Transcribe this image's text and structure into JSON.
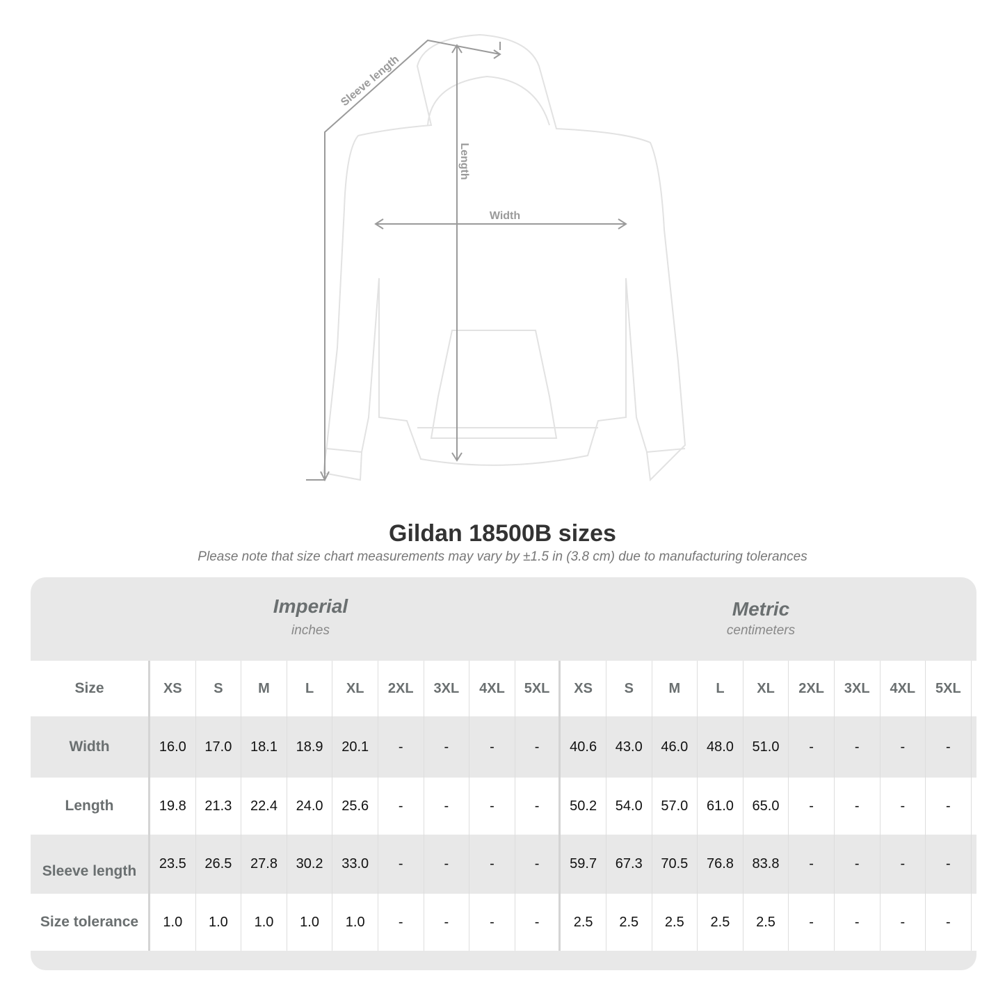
{
  "diagram": {
    "labels": {
      "sleeve": "Sleeve length",
      "length": "Length",
      "width": "Width"
    },
    "colors": {
      "garment": "#ffffff",
      "outline": "#e2e2e2",
      "measure": "#9a9a9a"
    }
  },
  "title": "Gildan 18500B sizes",
  "subtitle": "Please note that size chart measurements may vary by ±1.5 in (3.8 cm) due to manufacturing tolerances",
  "table": {
    "imperial": {
      "name": "Imperial",
      "unit": "inches"
    },
    "metric": {
      "name": "Metric",
      "unit": "centimeters"
    },
    "size_label": "Size",
    "sizes": [
      "XS",
      "S",
      "M",
      "L",
      "XL",
      "2XL",
      "3XL",
      "4XL",
      "5XL"
    ],
    "rows": [
      {
        "label": "Width",
        "imperial": [
          "16.0",
          "17.0",
          "18.1",
          "18.9",
          "20.1",
          "-",
          "-",
          "-",
          "-"
        ],
        "metric": [
          "40.6",
          "43.0",
          "46.0",
          "48.0",
          "51.0",
          "-",
          "-",
          "-",
          "-"
        ]
      },
      {
        "label": "Length",
        "imperial": [
          "19.8",
          "21.3",
          "22.4",
          "24.0",
          "25.6",
          "-",
          "-",
          "-",
          "-"
        ],
        "metric": [
          "50.2",
          "54.0",
          "57.0",
          "61.0",
          "65.0",
          "-",
          "-",
          "-",
          "-"
        ]
      },
      {
        "label": "Sleeve length",
        "imperial": [
          "23.5",
          "26.5",
          "27.8",
          "30.2",
          "33.0",
          "-",
          "-",
          "-",
          "-"
        ],
        "metric": [
          "59.7",
          "67.3",
          "70.5",
          "76.8",
          "83.8",
          "-",
          "-",
          "-",
          "-"
        ]
      },
      {
        "label": "Size tolerance",
        "imperial": [
          "1.0",
          "1.0",
          "1.0",
          "1.0",
          "1.0",
          "-",
          "-",
          "-",
          "-"
        ],
        "metric": [
          "2.5",
          "2.5",
          "2.5",
          "2.5",
          "2.5",
          "-",
          "-",
          "-",
          "-"
        ]
      }
    ]
  }
}
